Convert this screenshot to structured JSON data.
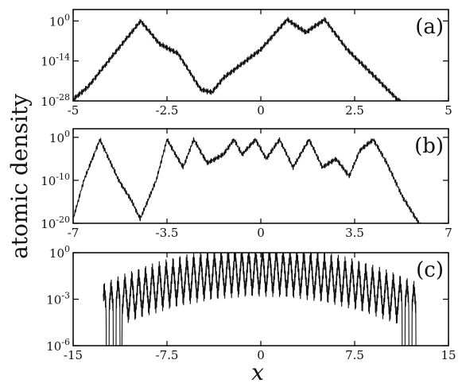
{
  "figure": {
    "ylabel": "atomic density",
    "xlabel": "x"
  },
  "chart_data": [
    {
      "type": "line",
      "panel_label": "(a)",
      "xlim": [
        -5,
        5
      ],
      "y_scale": "log",
      "ylim_exp": [
        -28,
        4
      ],
      "x_ticks": [
        -5,
        -2.5,
        0,
        2.5,
        5
      ],
      "x_tick_labels": [
        "-5",
        "-2.5",
        "0",
        "2.5",
        "5"
      ],
      "y_ticks": [
        {
          "base": "10",
          "exp": "0",
          "value_exp": 0
        },
        {
          "base": "10",
          "exp": "-14",
          "value_exp": -14
        },
        {
          "base": "10",
          "exp": "-28",
          "value_exp": -28
        }
      ],
      "series": [
        {
          "x": [
            -5,
            -4.6,
            -4.0,
            -3.2,
            -2.7,
            -2.2,
            -1.6,
            -1.3,
            -1.0,
            -0.5,
            0.0,
            0.7,
            1.2,
            1.7,
            2.3,
            3.0,
            3.6,
            3.8
          ],
          "y_exp": [
            -27.5,
            -23,
            -13,
            0,
            -8,
            -11.5,
            -24,
            -25,
            -20,
            -15,
            -10,
            0.5,
            -4,
            0.5,
            -10,
            -19,
            -27,
            -29
          ],
          "wiggle_amp": 1.1
        }
      ]
    },
    {
      "type": "line",
      "panel_label": "(b)",
      "xlim": [
        -7,
        7
      ],
      "y_scale": "log",
      "ylim_exp": [
        -20,
        2
      ],
      "x_ticks": [
        -7,
        -3.5,
        0,
        3.5,
        7
      ],
      "x_tick_labels": [
        "-7",
        "-3.5",
        "0",
        "3.5",
        "7"
      ],
      "y_ticks": [
        {
          "base": "10",
          "exp": "0",
          "value_exp": 0
        },
        {
          "base": "10",
          "exp": "-10",
          "value_exp": -10
        },
        {
          "base": "10",
          "exp": "-20",
          "value_exp": -20
        }
      ],
      "series": [
        {
          "x": [
            -7,
            -6.6,
            -6.0,
            -5.3,
            -4.8,
            -4.5,
            -3.9,
            -3.5,
            -2.9,
            -2.5,
            -2.0,
            -1.4,
            -1.0,
            -0.7,
            -0.2,
            0.2,
            0.7,
            1.2,
            1.8,
            2.3,
            2.8,
            3.3,
            3.7,
            4.2,
            4.7,
            5.3,
            5.8,
            6.0
          ],
          "y_exp": [
            -19,
            -10,
            -0.5,
            -10,
            -15,
            -19,
            -10,
            -0.5,
            -7,
            -0.5,
            -6,
            -4,
            -0.5,
            -4,
            -0.5,
            -5,
            -0.5,
            -7,
            -0.5,
            -7,
            -5,
            -9,
            -3,
            -0.5,
            -6,
            -14,
            -19,
            -21
          ],
          "wiggle_amp": 0.7
        }
      ]
    },
    {
      "type": "line",
      "panel_label": "(c)",
      "xlim": [
        -15,
        15
      ],
      "y_scale": "log",
      "ylim_exp": [
        -6,
        0
      ],
      "x_ticks": [
        -15,
        -7.5,
        0,
        7.5,
        15
      ],
      "x_tick_labels": [
        "-15",
        "-7.5",
        "0",
        "7.5",
        "15"
      ],
      "y_ticks": [
        {
          "base": "10",
          "exp": "0",
          "value_exp": 0
        },
        {
          "base": "10",
          "exp": "-3",
          "value_exp": -3
        },
        {
          "base": "10",
          "exp": "-6",
          "value_exp": -6
        }
      ],
      "series": [
        {
          "x_start": -12.6,
          "x_end": 12.6,
          "envelope_center_exp": -1.2,
          "envelope_edge_exp": -3.6,
          "oscillation_period": 0.55
        }
      ]
    }
  ]
}
